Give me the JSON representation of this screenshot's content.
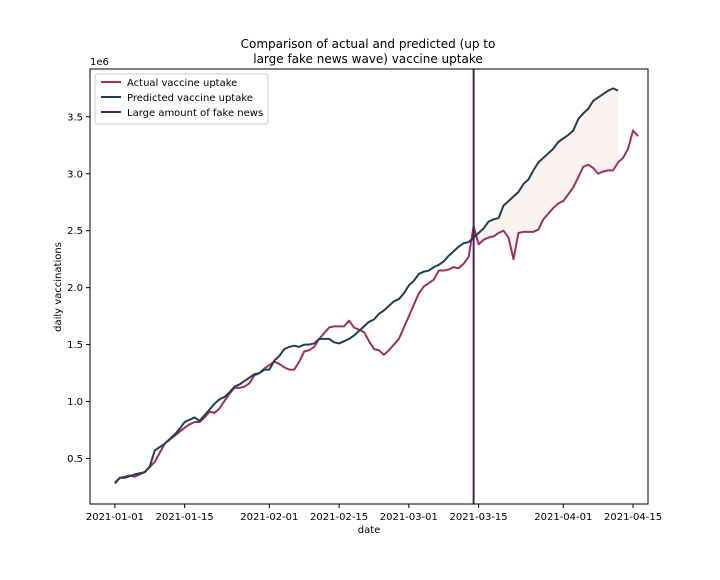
{
  "chart_data": {
    "type": "line",
    "title_lines": [
      "Comparison of actual and predicted (up to",
      "large fake news wave) vaccine uptake"
    ],
    "xlabel": "date",
    "ylabel": "daily vaccinations",
    "y_offset_label": "1e6",
    "x_axis": {
      "type": "date",
      "range": [
        "2020-12-27",
        "2021-04-18"
      ],
      "ticks": [
        {
          "value": "2021-01-01",
          "label": "2021-01-01"
        },
        {
          "value": "2021-01-15",
          "label": "2021-01-15"
        },
        {
          "value": "2021-02-01",
          "label": "2021-02-01"
        },
        {
          "value": "2021-02-15",
          "label": "2021-02-15"
        },
        {
          "value": "2021-03-01",
          "label": "2021-03-01"
        },
        {
          "value": "2021-03-15",
          "label": "2021-03-15"
        },
        {
          "value": "2021-04-01",
          "label": "2021-04-01"
        },
        {
          "value": "2021-04-15",
          "label": "2021-04-15"
        }
      ]
    },
    "y_axis": {
      "range": [
        0.1,
        3.92
      ],
      "scale_factor": 1000000,
      "ticks": [
        {
          "value": 0.5,
          "label": "0.5"
        },
        {
          "value": 1.0,
          "label": "1.0"
        },
        {
          "value": 1.5,
          "label": "1.5"
        },
        {
          "value": 2.0,
          "label": "2.0"
        },
        {
          "value": 2.5,
          "label": "2.5"
        },
        {
          "value": 3.0,
          "label": "3.0"
        },
        {
          "value": 3.5,
          "label": "3.5"
        }
      ]
    },
    "grid": false,
    "legend_position": "top-left",
    "colors": {
      "actual": "#A0305A",
      "predicted": "#1E3F55",
      "fake_news": "#4A2255",
      "fill": "#FAF3F0"
    },
    "series": [
      {
        "name": "Actual vaccine uptake",
        "key": "actual",
        "points": [
          [
            "2021-01-01",
            0.29
          ],
          [
            "2021-01-02",
            0.33
          ],
          [
            "2021-01-03",
            0.34
          ],
          [
            "2021-01-04",
            0.35
          ],
          [
            "2021-01-05",
            0.34
          ],
          [
            "2021-01-06",
            0.36
          ],
          [
            "2021-01-07",
            0.38
          ],
          [
            "2021-01-09",
            0.47
          ],
          [
            "2021-01-11",
            0.63
          ],
          [
            "2021-01-13",
            0.7
          ],
          [
            "2021-01-15",
            0.77
          ],
          [
            "2021-01-16",
            0.8
          ],
          [
            "2021-01-17",
            0.82
          ],
          [
            "2021-01-18",
            0.82
          ],
          [
            "2021-01-19",
            0.86
          ],
          [
            "2021-01-20",
            0.91
          ],
          [
            "2021-01-21",
            0.9
          ],
          [
            "2021-01-22",
            0.94
          ],
          [
            "2021-01-24",
            1.07
          ],
          [
            "2021-01-25",
            1.12
          ],
          [
            "2021-01-26",
            1.12
          ],
          [
            "2021-01-27",
            1.13
          ],
          [
            "2021-01-28",
            1.16
          ],
          [
            "2021-01-29",
            1.23
          ],
          [
            "2021-01-30",
            1.25
          ],
          [
            "2021-01-31",
            1.29
          ],
          [
            "2021-02-01",
            1.32
          ],
          [
            "2021-02-02",
            1.35
          ],
          [
            "2021-02-03",
            1.33
          ],
          [
            "2021-02-04",
            1.3
          ],
          [
            "2021-02-05",
            1.28
          ],
          [
            "2021-02-06",
            1.28
          ],
          [
            "2021-02-07",
            1.35
          ],
          [
            "2021-02-08",
            1.44
          ],
          [
            "2021-02-09",
            1.45
          ],
          [
            "2021-02-10",
            1.48
          ],
          [
            "2021-02-11",
            1.55
          ],
          [
            "2021-02-12",
            1.6
          ],
          [
            "2021-02-13",
            1.65
          ],
          [
            "2021-02-14",
            1.66
          ],
          [
            "2021-02-15",
            1.66
          ],
          [
            "2021-02-16",
            1.66
          ],
          [
            "2021-02-17",
            1.71
          ],
          [
            "2021-02-18",
            1.65
          ],
          [
            "2021-02-19",
            1.63
          ],
          [
            "2021-02-20",
            1.61
          ],
          [
            "2021-02-21",
            1.53
          ],
          [
            "2021-02-22",
            1.46
          ],
          [
            "2021-02-23",
            1.45
          ],
          [
            "2021-02-24",
            1.41
          ],
          [
            "2021-02-25",
            1.45
          ],
          [
            "2021-02-26",
            1.5
          ],
          [
            "2021-02-27",
            1.55
          ],
          [
            "2021-02-28",
            1.65
          ],
          [
            "2021-03-01",
            1.75
          ],
          [
            "2021-03-02",
            1.85
          ],
          [
            "2021-03-03",
            1.95
          ],
          [
            "2021-03-04",
            2.01
          ],
          [
            "2021-03-05",
            2.04
          ],
          [
            "2021-03-06",
            2.07
          ],
          [
            "2021-03-07",
            2.15
          ],
          [
            "2021-03-08",
            2.15
          ],
          [
            "2021-03-09",
            2.16
          ],
          [
            "2021-03-10",
            2.18
          ],
          [
            "2021-03-11",
            2.17
          ],
          [
            "2021-03-12",
            2.21
          ],
          [
            "2021-03-13",
            2.27
          ],
          [
            "2021-03-14",
            2.54
          ],
          [
            "2021-03-15",
            2.38
          ],
          [
            "2021-03-16",
            2.42
          ],
          [
            "2021-03-17",
            2.44
          ],
          [
            "2021-03-18",
            2.45
          ],
          [
            "2021-03-19",
            2.48
          ],
          [
            "2021-03-20",
            2.5
          ],
          [
            "2021-03-21",
            2.44
          ],
          [
            "2021-03-22",
            2.25
          ],
          [
            "2021-03-23",
            2.48
          ],
          [
            "2021-03-24",
            2.49
          ],
          [
            "2021-03-25",
            2.49
          ],
          [
            "2021-03-26",
            2.49
          ],
          [
            "2021-03-27",
            2.51
          ],
          [
            "2021-03-28",
            2.6
          ],
          [
            "2021-03-29",
            2.65
          ],
          [
            "2021-03-30",
            2.7
          ],
          [
            "2021-03-31",
            2.74
          ],
          [
            "2021-04-01",
            2.76
          ],
          [
            "2021-04-02",
            2.82
          ],
          [
            "2021-04-03",
            2.88
          ],
          [
            "2021-04-04",
            2.97
          ],
          [
            "2021-04-05",
            3.06
          ],
          [
            "2021-04-06",
            3.08
          ],
          [
            "2021-04-07",
            3.05
          ],
          [
            "2021-04-08",
            3.0
          ],
          [
            "2021-04-09",
            3.02
          ],
          [
            "2021-04-10",
            3.03
          ],
          [
            "2021-04-11",
            3.03
          ],
          [
            "2021-04-12",
            3.1
          ],
          [
            "2021-04-13",
            3.14
          ],
          [
            "2021-04-14",
            3.22
          ],
          [
            "2021-04-15",
            3.38
          ],
          [
            "2021-04-16",
            3.33
          ]
        ]
      },
      {
        "name": "Predicted vaccine uptake",
        "key": "predicted",
        "points": [
          [
            "2021-01-01",
            0.28
          ],
          [
            "2021-01-02",
            0.33
          ],
          [
            "2021-01-03",
            0.33
          ],
          [
            "2021-01-05",
            0.36
          ],
          [
            "2021-01-07",
            0.38
          ],
          [
            "2021-01-08",
            0.43
          ],
          [
            "2021-01-09",
            0.57
          ],
          [
            "2021-01-10",
            0.6
          ],
          [
            "2021-01-11",
            0.63
          ],
          [
            "2021-01-12",
            0.67
          ],
          [
            "2021-01-13",
            0.71
          ],
          [
            "2021-01-14",
            0.76
          ],
          [
            "2021-01-15",
            0.82
          ],
          [
            "2021-01-16",
            0.84
          ],
          [
            "2021-01-17",
            0.86
          ],
          [
            "2021-01-18",
            0.83
          ],
          [
            "2021-01-19",
            0.88
          ],
          [
            "2021-01-20",
            0.93
          ],
          [
            "2021-01-21",
            0.98
          ],
          [
            "2021-01-22",
            1.02
          ],
          [
            "2021-01-23",
            1.04
          ],
          [
            "2021-01-24",
            1.08
          ],
          [
            "2021-01-25",
            1.13
          ],
          [
            "2021-01-26",
            1.15
          ],
          [
            "2021-01-27",
            1.18
          ],
          [
            "2021-01-28",
            1.21
          ],
          [
            "2021-01-29",
            1.24
          ],
          [
            "2021-01-30",
            1.25
          ],
          [
            "2021-01-31",
            1.28
          ],
          [
            "2021-02-01",
            1.28
          ],
          [
            "2021-02-02",
            1.36
          ],
          [
            "2021-02-03",
            1.4
          ],
          [
            "2021-02-04",
            1.46
          ],
          [
            "2021-02-05",
            1.48
          ],
          [
            "2021-02-06",
            1.49
          ],
          [
            "2021-02-07",
            1.48
          ],
          [
            "2021-02-08",
            1.5
          ],
          [
            "2021-02-09",
            1.5
          ],
          [
            "2021-02-10",
            1.51
          ],
          [
            "2021-02-11",
            1.55
          ],
          [
            "2021-02-12",
            1.55
          ],
          [
            "2021-02-13",
            1.55
          ],
          [
            "2021-02-14",
            1.52
          ],
          [
            "2021-02-15",
            1.51
          ],
          [
            "2021-02-16",
            1.53
          ],
          [
            "2021-02-17",
            1.55
          ],
          [
            "2021-02-18",
            1.58
          ],
          [
            "2021-02-19",
            1.62
          ],
          [
            "2021-02-20",
            1.66
          ],
          [
            "2021-02-21",
            1.7
          ],
          [
            "2021-02-22",
            1.72
          ],
          [
            "2021-02-23",
            1.77
          ],
          [
            "2021-02-24",
            1.8
          ],
          [
            "2021-02-25",
            1.84
          ],
          [
            "2021-02-26",
            1.88
          ],
          [
            "2021-02-27",
            1.9
          ],
          [
            "2021-02-28",
            1.95
          ],
          [
            "2021-03-01",
            2.02
          ],
          [
            "2021-03-02",
            2.06
          ],
          [
            "2021-03-03",
            2.12
          ],
          [
            "2021-03-04",
            2.14
          ],
          [
            "2021-03-05",
            2.15
          ],
          [
            "2021-03-06",
            2.18
          ],
          [
            "2021-03-07",
            2.2
          ],
          [
            "2021-03-08",
            2.23
          ],
          [
            "2021-03-09",
            2.28
          ],
          [
            "2021-03-10",
            2.32
          ],
          [
            "2021-03-11",
            2.36
          ],
          [
            "2021-03-12",
            2.39
          ],
          [
            "2021-03-13",
            2.4
          ],
          [
            "2021-03-14",
            2.44
          ],
          [
            "2021-03-15",
            2.48
          ],
          [
            "2021-03-16",
            2.52
          ],
          [
            "2021-03-17",
            2.58
          ],
          [
            "2021-03-18",
            2.6
          ],
          [
            "2021-03-19",
            2.61
          ],
          [
            "2021-03-20",
            2.72
          ],
          [
            "2021-03-21",
            2.76
          ],
          [
            "2021-03-22",
            2.8
          ],
          [
            "2021-03-23",
            2.84
          ],
          [
            "2021-03-24",
            2.91
          ],
          [
            "2021-03-25",
            2.95
          ],
          [
            "2021-03-26",
            3.03
          ],
          [
            "2021-03-27",
            3.1
          ],
          [
            "2021-03-28",
            3.14
          ],
          [
            "2021-03-29",
            3.18
          ],
          [
            "2021-03-30",
            3.22
          ],
          [
            "2021-03-31",
            3.28
          ],
          [
            "2021-04-01",
            3.31
          ],
          [
            "2021-04-02",
            3.34
          ],
          [
            "2021-04-03",
            3.38
          ],
          [
            "2021-04-04",
            3.48
          ],
          [
            "2021-04-05",
            3.53
          ],
          [
            "2021-04-06",
            3.57
          ],
          [
            "2021-04-07",
            3.64
          ],
          [
            "2021-04-08",
            3.67
          ],
          [
            "2021-04-09",
            3.7
          ],
          [
            "2021-04-10",
            3.73
          ],
          [
            "2021-04-11",
            3.75
          ],
          [
            "2021-04-12",
            3.73
          ]
        ]
      }
    ],
    "vertical_line": {
      "name": "Large amount of fake news",
      "x": "2021-03-14"
    }
  }
}
